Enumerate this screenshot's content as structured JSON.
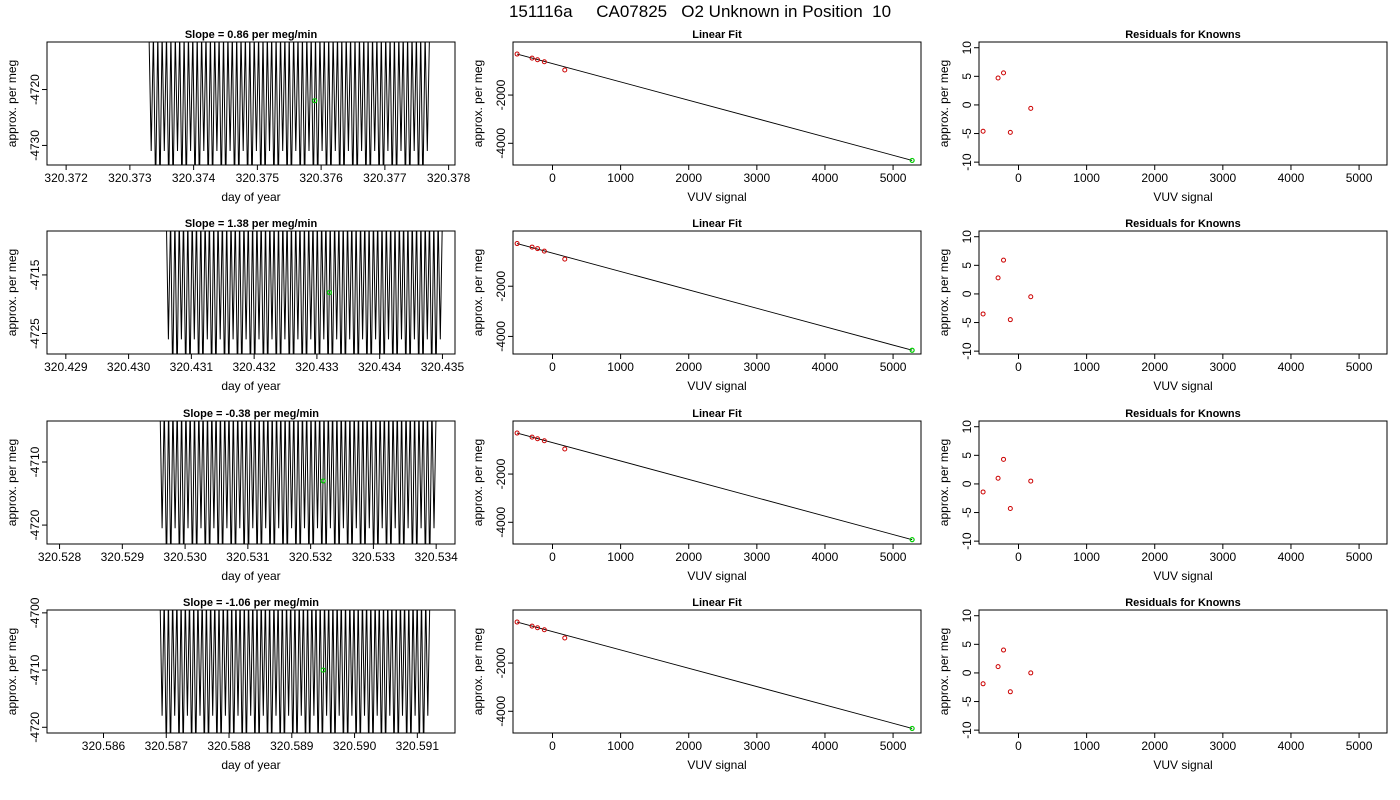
{
  "figure_title": "151116a     CA07825   O2 Unknown in Position  10",
  "colors": {
    "trace": "#000000",
    "known_point": "#cc0000",
    "unknown_point": "#00cc00",
    "fit_line": "#000000"
  },
  "chart_data": [
    {
      "type": "line",
      "title": "Slope =  0.86  per meg/min",
      "xlabel": "day of year",
      "ylabel": "approx. per meg",
      "xlim": [
        320.3717,
        320.3781
      ],
      "ylim": [
        -4733.5,
        -4711.5
      ],
      "xticks": [
        320.372,
        320.373,
        320.374,
        320.375,
        320.376,
        320.377,
        320.378
      ],
      "xtick_labels": [
        "320.372",
        "320.373",
        "320.374",
        "320.375",
        "320.376",
        "320.377",
        "320.378"
      ],
      "yticks": [
        -4720,
        -4730
      ],
      "ytick_labels": [
        "-4720",
        "-4730"
      ],
      "trace": {
        "x_start": 320.3733,
        "x_end": 320.3777,
        "cycles": 64,
        "y_high": -4710,
        "y_low": -4738
      },
      "unknown_point": {
        "x": 320.3759,
        "y": -4722
      }
    },
    {
      "type": "scatter",
      "title": "Linear Fit",
      "xlabel": "VUV signal",
      "ylabel": "approx. per meg",
      "xlim": [
        -580,
        5410
      ],
      "ylim": [
        -4900,
        200
      ],
      "xticks": [
        0,
        1000,
        2000,
        3000,
        4000,
        5000
      ],
      "xtick_labels": [
        "0",
        "1000",
        "2000",
        "3000",
        "4000",
        "5000"
      ],
      "yticks": [
        -2000,
        -4000
      ],
      "ytick_labels": [
        "-2000",
        "-4000"
      ],
      "known_x": [
        -520,
        -300,
        -220,
        -120,
        180
      ],
      "known_y": [
        -300,
        -470,
        -535,
        -620,
        -960
      ],
      "unknown_point": {
        "x": 5280,
        "y": -4710
      },
      "fit_line": {
        "x": [
          -520,
          5280
        ],
        "y": [
          -300,
          -4710
        ]
      }
    },
    {
      "type": "scatter",
      "title": "Residuals for Knowns",
      "xlabel": "VUV signal",
      "ylabel": "approx. per meg",
      "xlim": [
        -580,
        5410
      ],
      "ylim": [
        -10.5,
        11
      ],
      "xticks": [
        0,
        1000,
        2000,
        3000,
        4000,
        5000
      ],
      "xtick_labels": [
        "0",
        "1000",
        "2000",
        "3000",
        "4000",
        "5000"
      ],
      "yticks": [
        10,
        5,
        0,
        -5,
        -10
      ],
      "ytick_labels": [
        "10",
        "5",
        "0",
        "-5",
        "-10"
      ],
      "x": [
        -520,
        -300,
        -220,
        -120,
        180
      ],
      "y": [
        -4.6,
        4.7,
        5.6,
        -4.8,
        -0.6
      ]
    },
    {
      "type": "line",
      "title": "Slope =  1.38  per meg/min",
      "xlabel": "day of year",
      "ylabel": "approx. per meg",
      "xlim": [
        320.4287,
        320.4352
      ],
      "ylim": [
        -4728.5,
        -4707.5
      ],
      "xticks": [
        320.429,
        320.43,
        320.431,
        320.432,
        320.433,
        320.434,
        320.435
      ],
      "xtick_labels": [
        "320.429",
        "320.430",
        "320.431",
        "320.432",
        "320.433",
        "320.434",
        "320.435"
      ],
      "yticks": [
        -4715,
        -4725
      ],
      "ytick_labels": [
        "-4715",
        "-4725"
      ],
      "trace": {
        "x_start": 320.4306,
        "x_end": 320.435,
        "cycles": 64,
        "y_high": -4705,
        "y_low": -4733
      },
      "unknown_point": {
        "x": 320.4332,
        "y": -4718
      }
    },
    {
      "type": "scatter",
      "title": "Linear Fit",
      "xlabel": "VUV signal",
      "ylabel": "approx. per meg",
      "xlim": [
        -580,
        5410
      ],
      "ylim": [
        -4700,
        200
      ],
      "xticks": [
        0,
        1000,
        2000,
        3000,
        4000,
        5000
      ],
      "xtick_labels": [
        "0",
        "1000",
        "2000",
        "3000",
        "4000",
        "5000"
      ],
      "yticks": [
        -2000,
        -4000
      ],
      "ytick_labels": [
        "-2000",
        "-4000"
      ],
      "known_x": [
        -520,
        -300,
        -220,
        -120,
        180
      ],
      "known_y": [
        -300,
        -440,
        -500,
        -600,
        -920
      ],
      "unknown_point": {
        "x": 5280,
        "y": -4550
      },
      "fit_line": {
        "x": [
          -520,
          5280
        ],
        "y": [
          -300,
          -4550
        ]
      }
    },
    {
      "type": "scatter",
      "title": "Residuals for Knowns",
      "xlabel": "VUV signal",
      "ylabel": "approx. per meg",
      "xlim": [
        -580,
        5410
      ],
      "ylim": [
        -10.5,
        11
      ],
      "xticks": [
        0,
        1000,
        2000,
        3000,
        4000,
        5000
      ],
      "xtick_labels": [
        "0",
        "1000",
        "2000",
        "3000",
        "4000",
        "5000"
      ],
      "yticks": [
        10,
        5,
        0,
        -5,
        -10
      ],
      "ytick_labels": [
        "10",
        "5",
        "0",
        "-5",
        "-10"
      ],
      "x": [
        -520,
        -300,
        -220,
        -120,
        180
      ],
      "y": [
        -3.5,
        2.8,
        5.9,
        -4.5,
        -0.5
      ]
    },
    {
      "type": "line",
      "title": "Slope =  -0.38  per meg/min",
      "xlabel": "day of year",
      "ylabel": "approx. per meg",
      "xlim": [
        320.5278,
        320.5343
      ],
      "ylim": [
        -4723,
        -4703.5
      ],
      "xticks": [
        320.528,
        320.529,
        320.53,
        320.531,
        320.532,
        320.533,
        320.534
      ],
      "xtick_labels": [
        "320.528",
        "320.529",
        "320.530",
        "320.531",
        "320.532",
        "320.533",
        "320.534"
      ],
      "yticks": [
        -4710,
        -4720
      ],
      "ytick_labels": [
        "-4710",
        "-4720"
      ],
      "trace": {
        "x_start": 320.5296,
        "x_end": 320.534,
        "cycles": 64,
        "y_high": -4701,
        "y_low": -4727
      },
      "unknown_point": {
        "x": 320.5322,
        "y": -4713
      }
    },
    {
      "type": "scatter",
      "title": "Linear Fit",
      "xlabel": "VUV signal",
      "ylabel": "approx. per meg",
      "xlim": [
        -580,
        5410
      ],
      "ylim": [
        -4900,
        200
      ],
      "xticks": [
        0,
        1000,
        2000,
        3000,
        4000,
        5000
      ],
      "xtick_labels": [
        "0",
        "1000",
        "2000",
        "3000",
        "4000",
        "5000"
      ],
      "yticks": [
        -2000,
        -4000
      ],
      "ytick_labels": [
        "-2000",
        "-4000"
      ],
      "known_x": [
        -520,
        -300,
        -220,
        -120,
        180
      ],
      "known_y": [
        -300,
        -470,
        -535,
        -620,
        -960
      ],
      "unknown_point": {
        "x": 5280,
        "y": -4720
      },
      "fit_line": {
        "x": [
          -520,
          5280
        ],
        "y": [
          -300,
          -4720
        ]
      }
    },
    {
      "type": "scatter",
      "title": "Residuals for Knowns",
      "xlabel": "VUV signal",
      "ylabel": "approx. per meg",
      "xlim": [
        -580,
        5410
      ],
      "ylim": [
        -10.5,
        11
      ],
      "xticks": [
        0,
        1000,
        2000,
        3000,
        4000,
        5000
      ],
      "xtick_labels": [
        "0",
        "1000",
        "2000",
        "3000",
        "4000",
        "5000"
      ],
      "yticks": [
        10,
        5,
        0,
        -5,
        -10
      ],
      "ytick_labels": [
        "10",
        "5",
        "0",
        "-5",
        "-10"
      ],
      "x": [
        -520,
        -300,
        -220,
        -120,
        180
      ],
      "y": [
        -1.4,
        1.0,
        4.3,
        -4.3,
        0.5
      ]
    },
    {
      "type": "line",
      "title": "Slope =  -1.06  per meg/min",
      "xlabel": "day of year",
      "ylabel": "approx. per meg",
      "xlim": [
        320.5851,
        320.5916
      ],
      "ylim": [
        -4721,
        -4699.5
      ],
      "xticks": [
        320.586,
        320.587,
        320.588,
        320.589,
        320.59,
        320.591
      ],
      "xtick_labels": [
        "320.586",
        "320.587",
        "320.588",
        "320.589",
        "320.590",
        "320.591"
      ],
      "yticks": [
        -4700,
        -4710,
        -4720
      ],
      "ytick_labels": [
        "-4700",
        "-4710",
        "-4720"
      ],
      "trace": {
        "x_start": 320.5869,
        "x_end": 320.5912,
        "cycles": 64,
        "y_high": -4697,
        "y_low": -4725
      },
      "unknown_point": {
        "x": 320.5895,
        "y": -4710
      }
    },
    {
      "type": "scatter",
      "title": "Linear Fit",
      "xlabel": "VUV signal",
      "ylabel": "approx. per meg",
      "xlim": [
        -580,
        5410
      ],
      "ylim": [
        -4900,
        200
      ],
      "xticks": [
        0,
        1000,
        2000,
        3000,
        4000,
        5000
      ],
      "xtick_labels": [
        "0",
        "1000",
        "2000",
        "3000",
        "4000",
        "5000"
      ],
      "yticks": [
        -2000,
        -4000
      ],
      "ytick_labels": [
        "-2000",
        "-4000"
      ],
      "known_x": [
        -520,
        -300,
        -220,
        -120,
        180
      ],
      "known_y": [
        -300,
        -470,
        -535,
        -620,
        -960
      ],
      "unknown_point": {
        "x": 5280,
        "y": -4710
      },
      "fit_line": {
        "x": [
          -520,
          5280
        ],
        "y": [
          -300,
          -4710
        ]
      }
    },
    {
      "type": "scatter",
      "title": "Residuals for Knowns",
      "xlabel": "VUV signal",
      "ylabel": "approx. per meg",
      "xlim": [
        -580,
        5410
      ],
      "ylim": [
        -10.5,
        11
      ],
      "xticks": [
        0,
        1000,
        2000,
        3000,
        4000,
        5000
      ],
      "xtick_labels": [
        "0",
        "1000",
        "2000",
        "3000",
        "4000",
        "5000"
      ],
      "yticks": [
        10,
        5,
        0,
        -5,
        -10
      ],
      "ytick_labels": [
        "10",
        "5",
        "0",
        "-5",
        "-10"
      ],
      "x": [
        -520,
        -300,
        -220,
        -120,
        180
      ],
      "y": [
        -1.9,
        1.1,
        4.0,
        -3.3,
        0.0
      ]
    }
  ]
}
